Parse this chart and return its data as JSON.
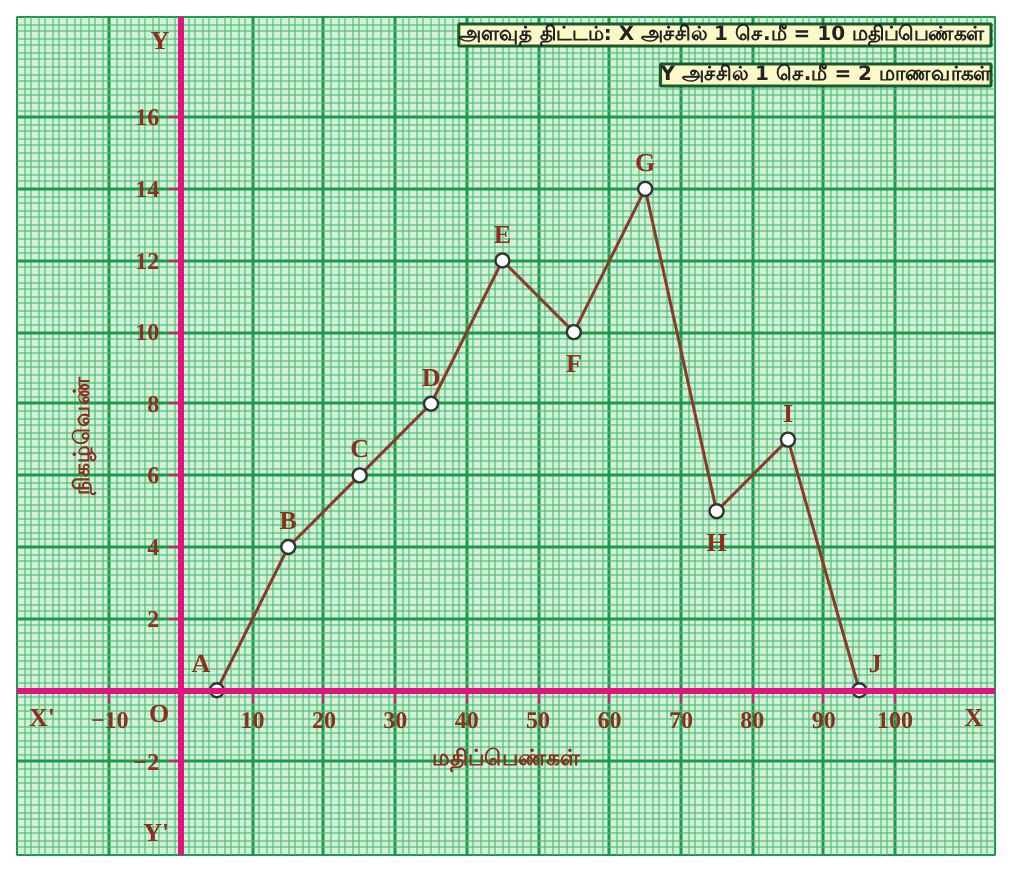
{
  "chart_data": {
    "type": "line",
    "xlabel": "மதிப்பெண்கள்",
    "ylabel": "நிகழ்வெண்",
    "x": [
      5,
      15,
      25,
      35,
      45,
      55,
      65,
      75,
      85,
      95
    ],
    "series": [
      {
        "color": "#8b3a2a",
        "values": [
          0,
          4,
          6,
          8,
          12,
          10,
          14,
          5,
          7,
          0
        ]
      }
    ],
    "xlim": [
      -23,
      114
    ],
    "ylim": [
      -4.6,
      18.8
    ],
    "xticks": [
      -10,
      10,
      20,
      30,
      40,
      50,
      60,
      70,
      80,
      90,
      100
    ],
    "yticks": [
      -2,
      2,
      4,
      6,
      8,
      10,
      12,
      14,
      16
    ],
    "grid": true,
    "marker": "circle",
    "line_style": "solid",
    "annotations": [
      "அளவுத் திட்டம்:  X அச்சில் 1 செ.மீ = 10 மதிப்பெண்கள்",
      "Y அச்சில் 1 செ.மீ = 2 மாணவர்கள்",
      {
        "text": "A",
        "x": 5,
        "y": 0
      },
      {
        "text": "B",
        "x": 15,
        "y": 4
      },
      {
        "text": "C",
        "x": 25,
        "y": 6
      },
      {
        "text": "D",
        "x": 35,
        "y": 8
      },
      {
        "text": "E",
        "x": 45,
        "y": 12
      },
      {
        "text": "F",
        "x": 55,
        "y": 10
      },
      {
        "text": "G",
        "x": 65,
        "y": 14
      },
      {
        "text": "H",
        "x": 75,
        "y": 5
      },
      {
        "text": "I",
        "x": 85,
        "y": 7
      },
      {
        "text": "J",
        "x": 95,
        "y": 0
      },
      "O",
      "X'",
      "X",
      "Y",
      "Y'"
    ]
  }
}
